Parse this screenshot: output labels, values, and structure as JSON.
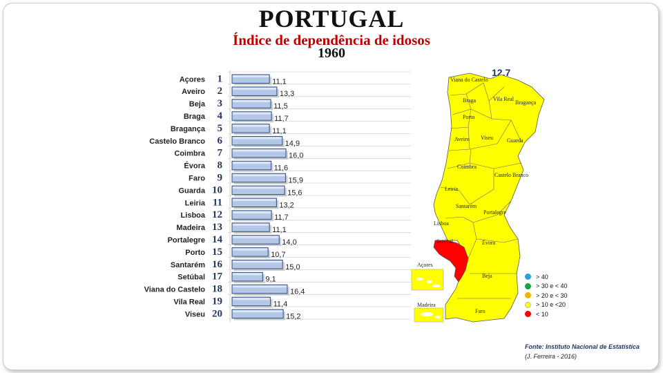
{
  "slide": {
    "title": "PORTUGAL",
    "subtitle": "Índice de dependência de idosos",
    "year": "1960",
    "average": "12,7",
    "source": "Fonte: Instituto Nacional de Estatística",
    "author": "(J. Ferreira - 2016)"
  },
  "chart_data": {
    "type": "bar",
    "orientation": "horizontal",
    "categories": [
      "Açores",
      "Aveiro",
      "Beja",
      "Braga",
      "Bragança",
      "Castelo Branco",
      "Coimbra",
      "Évora",
      "Faro",
      "Guarda",
      "Leiria",
      "Lisboa",
      "Madeira",
      "Portalegre",
      "Porto",
      "Santarém",
      "Setúbal",
      "Viana do Castelo",
      "Vila Real",
      "Viseu"
    ],
    "ranks": [
      "1",
      "2",
      "3",
      "4",
      "5",
      "6",
      "7",
      "8",
      "9",
      "10",
      "11",
      "12",
      "13",
      "14",
      "15",
      "16",
      "17",
      "18",
      "19",
      "20"
    ],
    "values": [
      11.1,
      13.3,
      11.5,
      11.7,
      11.1,
      14.9,
      16.0,
      11.6,
      15.9,
      15.6,
      13.2,
      11.7,
      11.1,
      14.0,
      10.7,
      15.0,
      9.1,
      16.4,
      11.4,
      15.2
    ],
    "value_labels": [
      "11,1",
      "13,3",
      "11,5",
      "11,7",
      "11,1",
      "14,9",
      "16,0",
      "11,6",
      "15,9",
      "15,6",
      "13,2",
      "11,7",
      "11,1",
      "14,0",
      "10,7",
      "15,0",
      "9,1",
      "16,4",
      "11,4",
      "15,2"
    ],
    "xlim": [
      0,
      16.4
    ],
    "bar_color": "#b4c7e7",
    "bar_edge_color": "#2f4f7f"
  },
  "map": {
    "districts": [
      "Viana do Castelo",
      "Braga",
      "Vila Real",
      "Bragança",
      "Porto",
      "Aveiro",
      "Viseu",
      "Guarda",
      "Coimbra",
      "Castelo Branco",
      "Leiria",
      "Santarém",
      "Portalegre",
      "Lisboa",
      "Setúbal",
      "Évora",
      "Beja",
      "Faro"
    ],
    "insets": {
      "azores": "Açores",
      "madeira": "Madeira"
    },
    "fill_colors": {
      "above_10": "#ffff00",
      "below_10": "#ff0000"
    }
  },
  "legend": [
    {
      "label": "> 40",
      "color": "#2e9fd8"
    },
    {
      "label": "> 30 e < 40",
      "color": "#16a34a"
    },
    {
      "label": "> 20 e < 30",
      "color": "#f0b400"
    },
    {
      "label": "> 10 e <20",
      "color": "#ffff00"
    },
    {
      "label": "< 10",
      "color": "#ff0000"
    }
  ]
}
